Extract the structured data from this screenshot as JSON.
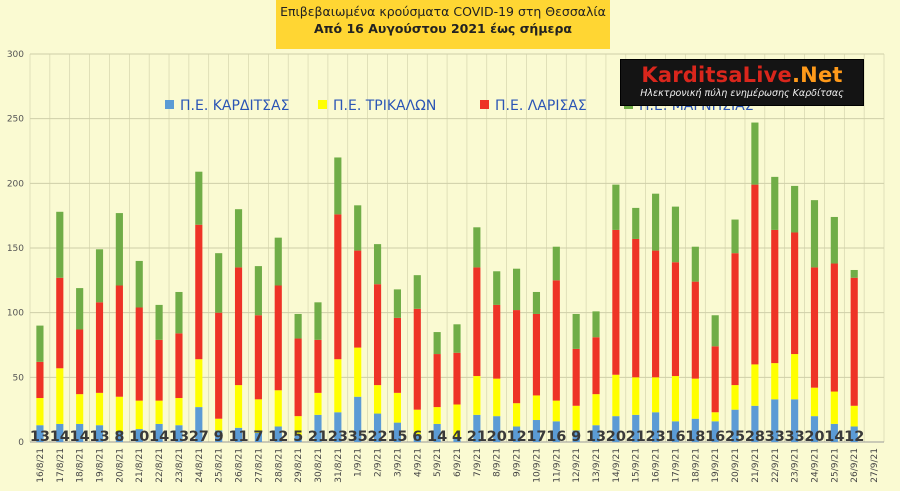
{
  "header": {
    "title_line1": "Επιβεβαιωμένα κρούσματα COVID-19 στη Θεσσαλία",
    "title_line2": "Από 16 Αυγούστου 2021 έως σήμερα"
  },
  "logo": {
    "name_part1": "KarditsaLive",
    "name_part2": ".Net",
    "tagline": "Ηλεκτρονική πύλη ενημέρωσης Καρδίτσας"
  },
  "colors": {
    "background": "#fafad2",
    "gridline": "#cfcfa8",
    "karditsa": "#5b9bd5",
    "trikala": "#ffff00",
    "larisa": "#ee3326",
    "magnisia": "#70ad47"
  },
  "chart_data": {
    "type": "bar",
    "stacked": true,
    "title": "",
    "ylim": [
      0,
      300
    ],
    "yticks": [
      0,
      50,
      100,
      150,
      200,
      250,
      300
    ],
    "grid": true,
    "legend_position": "top",
    "categories": [
      "16/8/21",
      "17/8/21",
      "18/8/21",
      "19/8/21",
      "20/8/21",
      "21/8/21",
      "22/8/21",
      "23/8/21",
      "24/8/21",
      "25/8/21",
      "26/8/21",
      "27/8/21",
      "28/8/21",
      "29/8/21",
      "30/8/21",
      "31/8/21",
      "1/9/21",
      "2/9/21",
      "3/9/21",
      "4/9/21",
      "5/9/21",
      "6/9/21",
      "7/9/21",
      "8/9/21",
      "9/9/21",
      "10/9/21",
      "11/9/21",
      "12/9/21",
      "13/9/21",
      "14/9/21",
      "15/9/21",
      "16/9/21",
      "17/9/21",
      "18/9/21",
      "19/9/21",
      "20/9/21",
      "21/9/21",
      "22/9/21",
      "23/9/21",
      "24/9/21",
      "25/9/21",
      "26/9/21",
      "27/9/21"
    ],
    "series": [
      {
        "name": "Π.Ε. ΚΑΡΔΙΤΣΑΣ",
        "color": "#5b9bd5",
        "values": [
          13,
          14,
          14,
          13,
          8,
          10,
          14,
          13,
          27,
          9,
          11,
          7,
          12,
          5,
          21,
          23,
          35,
          22,
          15,
          6,
          14,
          4,
          21,
          20,
          12,
          17,
          16,
          9,
          13,
          20,
          21,
          23,
          16,
          18,
          16,
          25,
          28,
          33,
          33,
          20,
          14,
          12,
          null
        ]
      },
      {
        "name": "Π.Ε. ΤΡΙΚΑΛΩΝ",
        "color": "#ffff00",
        "values": [
          21,
          43,
          23,
          25,
          27,
          22,
          18,
          21,
          37,
          9,
          33,
          26,
          28,
          15,
          17,
          41,
          38,
          22,
          23,
          19,
          13,
          25,
          30,
          29,
          18,
          19,
          16,
          19,
          24,
          32,
          29,
          27,
          35,
          31,
          7,
          19,
          32,
          28,
          35,
          22,
          25,
          16,
          null
        ]
      },
      {
        "name": "Π.Ε. ΛΑΡΙΣΑΣ",
        "color": "#ee3326",
        "values": [
          28,
          70,
          50,
          70,
          86,
          72,
          47,
          50,
          104,
          82,
          91,
          65,
          81,
          60,
          41,
          112,
          75,
          78,
          58,
          78,
          41,
          40,
          84,
          57,
          72,
          63,
          93,
          44,
          44,
          112,
          107,
          98,
          88,
          75,
          51,
          102,
          139,
          103,
          94,
          93,
          99,
          99,
          null
        ]
      },
      {
        "name": "Π.Ε. ΜΑΓΝΗΣΙΑΣ",
        "color": "#70ad47",
        "values": [
          28,
          51,
          32,
          41,
          56,
          36,
          27,
          32,
          41,
          46,
          45,
          38,
          37,
          19,
          29,
          44,
          35,
          31,
          22,
          26,
          17,
          22,
          31,
          26,
          32,
          17,
          26,
          27,
          20,
          35,
          24,
          44,
          43,
          27,
          24,
          26,
          48,
          41,
          36,
          52,
          36,
          6,
          null
        ]
      }
    ],
    "data_labels_series": "Π.Ε. ΚΑΡΔΙΤΣΑΣ"
  }
}
